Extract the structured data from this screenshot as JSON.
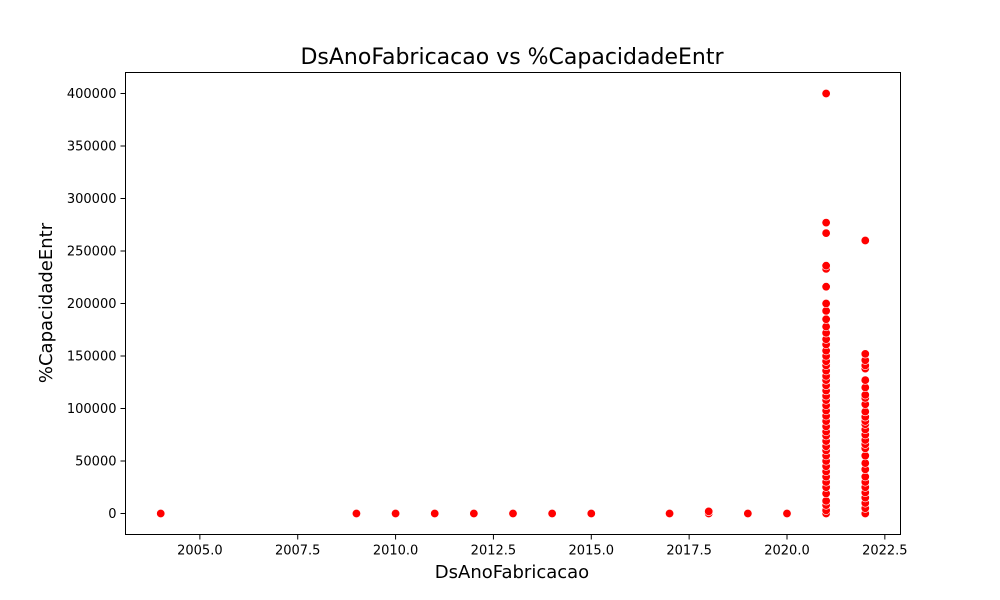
{
  "chart_data": {
    "type": "scatter",
    "title": "DsAnoFabricacao vs %CapacidadeEntr",
    "xlabel": "DsAnoFabricacao",
    "ylabel": "%CapacidadeEntr",
    "xlim": [
      2003.1,
      2022.9
    ],
    "ylim": [
      -20000,
      420000
    ],
    "xticks": [
      2005.0,
      2007.5,
      2010.0,
      2012.5,
      2015.0,
      2017.5,
      2020.0,
      2022.5
    ],
    "xtick_labels": [
      "2005.0",
      "2007.5",
      "2010.0",
      "2012.5",
      "2015.0",
      "2017.5",
      "2020.0",
      "2022.5"
    ],
    "yticks": [
      0,
      50000,
      100000,
      150000,
      200000,
      250000,
      300000,
      350000,
      400000
    ],
    "ytick_labels": [
      "0",
      "50000",
      "100000",
      "150000",
      "200000",
      "250000",
      "300000",
      "350000",
      "400000"
    ],
    "grid": false,
    "marker_color": "#ff0000",
    "series": [
      {
        "points": [
          [
            2004,
            0
          ],
          [
            2009,
            0
          ],
          [
            2010,
            0
          ],
          [
            2011,
            0
          ],
          [
            2012,
            0
          ],
          [
            2013,
            0
          ],
          [
            2014,
            0
          ],
          [
            2015,
            0
          ],
          [
            2017,
            0
          ],
          [
            2018,
            0
          ],
          [
            2018,
            2000
          ],
          [
            2019,
            0
          ],
          [
            2020,
            0
          ],
          [
            2021,
            0
          ],
          [
            2021,
            3000
          ],
          [
            2021,
            8000
          ],
          [
            2021,
            12000
          ],
          [
            2021,
            19000
          ],
          [
            2021,
            25000
          ],
          [
            2021,
            30000
          ],
          [
            2021,
            35000
          ],
          [
            2021,
            40000
          ],
          [
            2021,
            45000
          ],
          [
            2021,
            50000
          ],
          [
            2021,
            55000
          ],
          [
            2021,
            60000
          ],
          [
            2021,
            64000
          ],
          [
            2021,
            69000
          ],
          [
            2021,
            74000
          ],
          [
            2021,
            78000
          ],
          [
            2021,
            83000
          ],
          [
            2021,
            88000
          ],
          [
            2021,
            93000
          ],
          [
            2021,
            98000
          ],
          [
            2021,
            103000
          ],
          [
            2021,
            108000
          ],
          [
            2021,
            112000
          ],
          [
            2021,
            117000
          ],
          [
            2021,
            122000
          ],
          [
            2021,
            127000
          ],
          [
            2021,
            131000
          ],
          [
            2021,
            136000
          ],
          [
            2021,
            141000
          ],
          [
            2021,
            145000
          ],
          [
            2021,
            150000
          ],
          [
            2021,
            155000
          ],
          [
            2021,
            161000
          ],
          [
            2021,
            166000
          ],
          [
            2021,
            172000
          ],
          [
            2021,
            178000
          ],
          [
            2021,
            185000
          ],
          [
            2021,
            193000
          ],
          [
            2021,
            200000
          ],
          [
            2021,
            216000
          ],
          [
            2021,
            233000
          ],
          [
            2021,
            236000
          ],
          [
            2021,
            267000
          ],
          [
            2021,
            277000
          ],
          [
            2021,
            400000
          ],
          [
            2022,
            0
          ],
          [
            2022,
            5000
          ],
          [
            2022,
            10000
          ],
          [
            2022,
            15000
          ],
          [
            2022,
            20000
          ],
          [
            2022,
            25000
          ],
          [
            2022,
            30000
          ],
          [
            2022,
            35000
          ],
          [
            2022,
            42000
          ],
          [
            2022,
            48000
          ],
          [
            2022,
            55000
          ],
          [
            2022,
            62000
          ],
          [
            2022,
            66000
          ],
          [
            2022,
            70000
          ],
          [
            2022,
            75000
          ],
          [
            2022,
            80000
          ],
          [
            2022,
            85000
          ],
          [
            2022,
            88000
          ],
          [
            2022,
            92000
          ],
          [
            2022,
            97000
          ],
          [
            2022,
            104000
          ],
          [
            2022,
            110000
          ],
          [
            2022,
            113000
          ],
          [
            2022,
            120000
          ],
          [
            2022,
            127000
          ],
          [
            2022,
            138000
          ],
          [
            2022,
            141000
          ],
          [
            2022,
            146000
          ],
          [
            2022,
            152000
          ],
          [
            2022,
            260000
          ]
        ]
      }
    ]
  }
}
